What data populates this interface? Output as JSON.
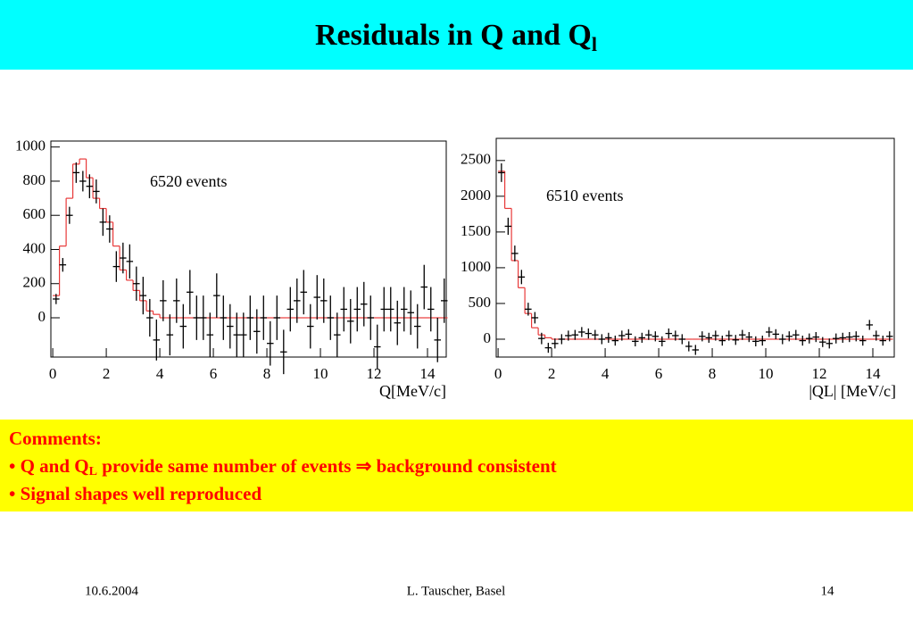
{
  "slide": {
    "title": "Residuals in Q  and Q",
    "title_sub": "l",
    "comments_heading": "Comments:",
    "bullet1_a": "• Q and Q",
    "bullet1_sub": "L",
    "bullet1_b": " provide same number of events ",
    "bullet1_arrow": "⇒",
    "bullet1_c": " background consistent",
    "bullet2": "• Signal shapes well reproduced",
    "footer_left": "10.6.2004",
    "footer_center": "L. Tauscher, Basel",
    "footer_right": "14"
  },
  "chart_data": [
    {
      "type": "errorbar",
      "annotation": "6520 events",
      "xlabel": "Q[MeV/c]",
      "xlim": [
        -0.07,
        14.7
      ],
      "ylim": [
        -230,
        1035
      ],
      "xticks": [
        0,
        2,
        4,
        6,
        8,
        10,
        12,
        14
      ],
      "yticks": [
        0,
        200,
        400,
        600,
        800,
        1000
      ],
      "x": [
        0.125,
        0.375,
        0.625,
        0.875,
        1.125,
        1.375,
        1.625,
        1.875,
        2.125,
        2.375,
        2.625,
        2.875,
        3.125,
        3.375,
        3.625,
        3.875,
        4.125,
        4.375,
        4.625,
        4.875,
        5.125,
        5.375,
        5.625,
        5.875,
        6.125,
        6.375,
        6.625,
        6.875,
        7.125,
        7.375,
        7.625,
        7.875,
        8.125,
        8.375,
        8.625,
        8.875,
        9.125,
        9.375,
        9.625,
        9.875,
        10.125,
        10.375,
        10.625,
        10.875,
        11.125,
        11.375,
        11.625,
        11.875,
        12.125,
        12.375,
        12.625,
        12.875,
        13.125,
        13.375,
        13.625,
        13.875,
        14.125,
        14.375,
        14.625
      ],
      "series": [
        {
          "color": "#000000",
          "values": [
            110,
            310,
            600,
            850,
            800,
            770,
            740,
            560,
            520,
            300,
            350,
            330,
            200,
            130,
            0,
            -130,
            100,
            -100,
            100,
            -50,
            150,
            0,
            0,
            -100,
            130,
            0,
            -50,
            -100,
            -100,
            0,
            -80,
            0,
            -150,
            0,
            -200,
            50,
            100,
            150,
            -50,
            120,
            100,
            0,
            -100,
            50,
            -20,
            50,
            80,
            0,
            -170,
            50,
            50,
            -30,
            50,
            30,
            -50,
            180,
            50,
            -130,
            100
          ],
          "errors": [
            30,
            40,
            50,
            60,
            60,
            70,
            70,
            80,
            80,
            90,
            90,
            100,
            100,
            110,
            110,
            120,
            120,
            120,
            130,
            130,
            130,
            130,
            130,
            130,
            130,
            130,
            130,
            130,
            130,
            130,
            130,
            130,
            130,
            130,
            130,
            130,
            130,
            130,
            130,
            130,
            130,
            130,
            130,
            130,
            130,
            130,
            130,
            130,
            130,
            130,
            130,
            130,
            130,
            130,
            130,
            130,
            130,
            130,
            130
          ]
        },
        {
          "color": "#e83838",
          "values": [
            130,
            420,
            700,
            900,
            930,
            820,
            700,
            640,
            560,
            420,
            280,
            220,
            160,
            100,
            40,
            20,
            0,
            0,
            0,
            0,
            0,
            0,
            0,
            0,
            0,
            0,
            0,
            0,
            0,
            0,
            0,
            0,
            0,
            0,
            0,
            0,
            0,
            0,
            0,
            0,
            0,
            0,
            0,
            0,
            0,
            0,
            0,
            0,
            0,
            0,
            0,
            0,
            0,
            0,
            0,
            0,
            0,
            0,
            0
          ]
        }
      ]
    },
    {
      "type": "errorbar",
      "annotation": "6510 events",
      "xlabel": "|QL| [MeV/c]",
      "xlim": [
        -0.07,
        14.8
      ],
      "ylim": [
        -250,
        2810
      ],
      "xticks": [
        0,
        2,
        4,
        6,
        8,
        10,
        12,
        14
      ],
      "yticks": [
        0,
        500,
        1000,
        1500,
        2000,
        2500
      ],
      "x": [
        0.125,
        0.375,
        0.625,
        0.875,
        1.125,
        1.375,
        1.625,
        1.875,
        2.125,
        2.375,
        2.625,
        2.875,
        3.125,
        3.375,
        3.625,
        3.875,
        4.125,
        4.375,
        4.625,
        4.875,
        5.125,
        5.375,
        5.625,
        5.875,
        6.125,
        6.375,
        6.625,
        6.875,
        7.125,
        7.375,
        7.625,
        7.875,
        8.125,
        8.375,
        8.625,
        8.875,
        9.125,
        9.375,
        9.625,
        9.875,
        10.125,
        10.375,
        10.625,
        10.875,
        11.125,
        11.375,
        11.625,
        11.875,
        12.125,
        12.375,
        12.625,
        12.875,
        13.125,
        13.375,
        13.625,
        13.875,
        14.125,
        14.375,
        14.625
      ],
      "series": [
        {
          "color": "#000000",
          "values": [
            2330,
            1580,
            1200,
            870,
            420,
            300,
            10,
            -120,
            -60,
            0,
            50,
            60,
            100,
            80,
            60,
            0,
            20,
            -20,
            50,
            70,
            -30,
            20,
            60,
            40,
            -30,
            80,
            50,
            0,
            -100,
            -150,
            40,
            20,
            50,
            -20,
            50,
            -10,
            60,
            30,
            -30,
            -20,
            100,
            70,
            0,
            40,
            60,
            -20,
            10,
            30,
            -40,
            -60,
            10,
            20,
            30,
            40,
            -20,
            200,
            50,
            -20,
            40
          ],
          "errors": [
            130,
            120,
            110,
            100,
            90,
            80,
            80,
            70,
            70,
            70,
            70,
            70,
            70,
            70,
            70,
            70,
            70,
            70,
            70,
            70,
            70,
            70,
            70,
            70,
            70,
            70,
            70,
            70,
            70,
            70,
            70,
            70,
            70,
            70,
            70,
            70,
            70,
            70,
            70,
            70,
            70,
            70,
            70,
            70,
            70,
            70,
            70,
            70,
            70,
            70,
            70,
            70,
            70,
            70,
            70,
            70,
            70,
            70,
            70
          ]
        },
        {
          "color": "#e83838",
          "values": [
            2350,
            1830,
            1100,
            720,
            360,
            160,
            60,
            20,
            0,
            0,
            0,
            0,
            0,
            0,
            0,
            0,
            0,
            0,
            0,
            0,
            0,
            0,
            0,
            0,
            0,
            0,
            0,
            0,
            0,
            0,
            0,
            0,
            0,
            0,
            0,
            0,
            0,
            0,
            0,
            0,
            0,
            0,
            0,
            0,
            0,
            0,
            0,
            0,
            0,
            0,
            0,
            0,
            0,
            0,
            0,
            0,
            0,
            0,
            0
          ]
        }
      ]
    }
  ]
}
